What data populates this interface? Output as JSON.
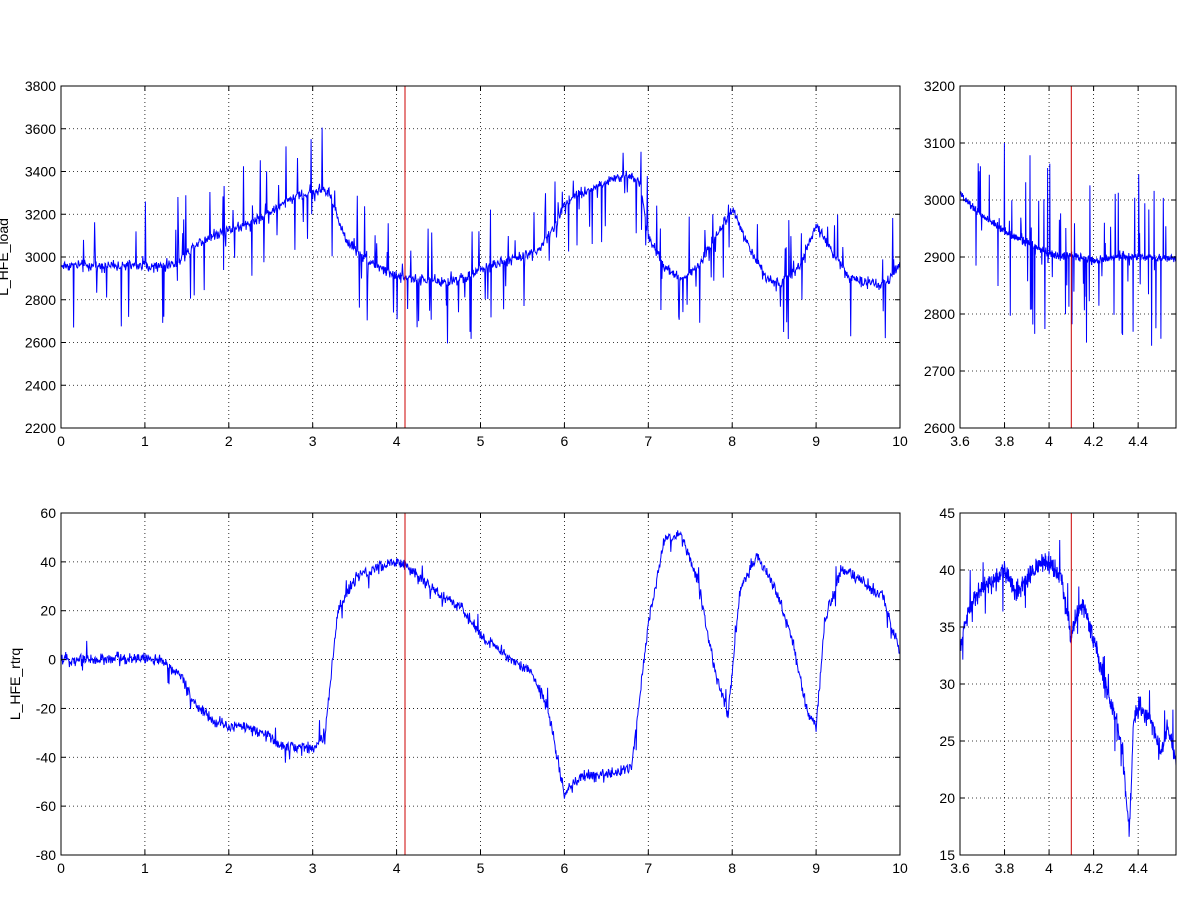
{
  "chart_data": [
    {
      "type": "line",
      "panel": "top-main",
      "title": "",
      "xlabel": "",
      "ylabel": "L_HFE_load",
      "xlim": [
        0,
        10
      ],
      "ylim": [
        2200,
        3800
      ],
      "xticks": [
        0,
        1,
        2,
        3,
        4,
        5,
        6,
        7,
        8,
        9,
        10
      ],
      "yticks": [
        2200,
        2400,
        2600,
        2800,
        3000,
        3200,
        3400,
        3600,
        3800
      ],
      "grid": true,
      "series": [
        {
          "color": "#0000ff",
          "noise": 25,
          "spike_density": 0.12,
          "spike_amp": 300,
          "x": [
            0,
            0.3,
            0.6,
            0.9,
            1.2,
            1.4,
            1.6,
            1.8,
            2.0,
            2.2,
            2.4,
            2.6,
            2.8,
            3.0,
            3.1,
            3.2,
            3.3,
            3.4,
            3.6,
            3.8,
            4.0,
            4.2,
            4.4,
            4.6,
            4.8,
            5.0,
            5.2,
            5.5,
            5.7,
            5.9,
            6.0,
            6.2,
            6.4,
            6.6,
            6.8,
            6.9,
            7.0,
            7.2,
            7.4,
            7.6,
            7.8,
            8.0,
            8.2,
            8.4,
            8.6,
            8.8,
            9.0,
            9.2,
            9.4,
            9.6,
            9.8,
            10.0
          ],
          "y": [
            2960,
            2960,
            2960,
            2960,
            2955,
            2975,
            3060,
            3100,
            3130,
            3150,
            3190,
            3240,
            3280,
            3300,
            3320,
            3300,
            3180,
            3080,
            3000,
            2950,
            2905,
            2900,
            2890,
            2880,
            2900,
            2940,
            2970,
            3000,
            3040,
            3150,
            3250,
            3300,
            3330,
            3370,
            3375,
            3350,
            3100,
            2950,
            2900,
            2960,
            3100,
            3220,
            3050,
            2900,
            2880,
            2960,
            3150,
            3020,
            2900,
            2880,
            2860,
            2970
          ]
        },
        {
          "color": "#cc0000",
          "x": [
            4.1,
            4.1
          ],
          "y": [
            2200,
            3800
          ]
        }
      ]
    },
    {
      "type": "line",
      "panel": "top-zoom",
      "title": "",
      "xlabel": "",
      "ylabel": "",
      "xlim": [
        3.6,
        4.57
      ],
      "ylim": [
        2600,
        3200
      ],
      "xticks": [
        3.6,
        3.8,
        4,
        4.2,
        4.4
      ],
      "xtick_labels": [
        "3.6",
        "3.8",
        "4",
        "4.2",
        "4.4"
      ],
      "yticks": [
        2600,
        2700,
        2800,
        2900,
        3000,
        3100,
        3200
      ],
      "grid": true,
      "series": [
        {
          "color": "#0000ff",
          "noise": 7,
          "spike_density": 0.12,
          "spike_amp": 160,
          "x": [
            3.6,
            3.65,
            3.7,
            3.75,
            3.8,
            3.85,
            3.9,
            3.95,
            4.0,
            4.05,
            4.1,
            4.15,
            4.2,
            4.25,
            4.3,
            4.35,
            4.4,
            4.45,
            4.5,
            4.57
          ],
          "y": [
            3010,
            2990,
            2970,
            2960,
            2945,
            2935,
            2925,
            2915,
            2905,
            2900,
            2905,
            2898,
            2893,
            2895,
            2900,
            2902,
            2900,
            2900,
            2898,
            2900
          ]
        },
        {
          "color": "#cc0000",
          "x": [
            4.1,
            4.1
          ],
          "y": [
            2600,
            3200
          ]
        }
      ]
    },
    {
      "type": "line",
      "panel": "bottom-main",
      "title": "",
      "xlabel": "",
      "ylabel": "L_HFE_rtrq",
      "xlim": [
        0,
        10
      ],
      "ylim": [
        -80,
        60
      ],
      "xticks": [
        0,
        1,
        2,
        3,
        4,
        5,
        6,
        7,
        8,
        9,
        10
      ],
      "yticks": [
        -80,
        -60,
        -40,
        -20,
        0,
        20,
        40,
        60
      ],
      "grid": true,
      "series": [
        {
          "color": "#0000ff",
          "noise": 2.5,
          "spike_density": 0.03,
          "spike_amp": 8,
          "x": [
            0,
            0.5,
            1.0,
            1.2,
            1.4,
            1.6,
            1.8,
            2.0,
            2.2,
            2.4,
            2.6,
            2.8,
            3.0,
            3.15,
            3.3,
            3.5,
            3.8,
            4.0,
            4.2,
            4.5,
            4.8,
            5.0,
            5.3,
            5.6,
            5.8,
            6.0,
            6.2,
            6.5,
            6.8,
            7.0,
            7.2,
            7.4,
            7.6,
            7.8,
            7.95,
            8.1,
            8.3,
            8.5,
            8.7,
            8.9,
            9.0,
            9.1,
            9.3,
            9.5,
            9.8,
            10.0
          ],
          "y": [
            0,
            0,
            1,
            -1,
            -5,
            -18,
            -25,
            -28,
            -27,
            -30,
            -35,
            -36,
            -36,
            -30,
            20,
            33,
            38,
            40,
            36,
            27,
            20,
            10,
            2,
            -5,
            -20,
            -55,
            -48,
            -47,
            -44,
            15,
            50,
            51,
            30,
            -5,
            -22,
            30,
            42,
            30,
            10,
            -22,
            -28,
            15,
            37,
            33,
            25,
            3
          ]
        },
        {
          "color": "#cc0000",
          "x": [
            4.1,
            4.1
          ],
          "y": [
            -80,
            60
          ]
        }
      ]
    },
    {
      "type": "line",
      "panel": "bottom-zoom",
      "title": "",
      "xlabel": "",
      "ylabel": "",
      "xlim": [
        3.6,
        4.57
      ],
      "ylim": [
        15,
        45
      ],
      "xticks": [
        3.6,
        3.8,
        4,
        4.2,
        4.4
      ],
      "xtick_labels": [
        "3.6",
        "3.8",
        "4",
        "4.2",
        "4.4"
      ],
      "yticks": [
        15,
        20,
        25,
        30,
        35,
        40,
        45
      ],
      "grid": true,
      "series": [
        {
          "color": "#0000ff",
          "noise": 0.9,
          "spike_density": 0.05,
          "spike_amp": 3,
          "x": [
            3.6,
            3.62,
            3.65,
            3.7,
            3.75,
            3.8,
            3.85,
            3.9,
            3.95,
            4.0,
            4.03,
            4.06,
            4.08,
            4.1,
            4.13,
            4.17,
            4.2,
            4.25,
            4.3,
            4.33,
            4.36,
            4.38,
            4.4,
            4.45,
            4.5,
            4.53,
            4.55,
            4.57
          ],
          "y": [
            33,
            35,
            37,
            38.5,
            39,
            40,
            38,
            39,
            40.5,
            40.5,
            40,
            39,
            36,
            34,
            37,
            36,
            34,
            30,
            27,
            24,
            17,
            27,
            28,
            27,
            24,
            26,
            25,
            23
          ]
        },
        {
          "color": "#cc0000",
          "x": [
            4.1,
            4.1
          ],
          "y": [
            15,
            45
          ]
        }
      ]
    }
  ]
}
